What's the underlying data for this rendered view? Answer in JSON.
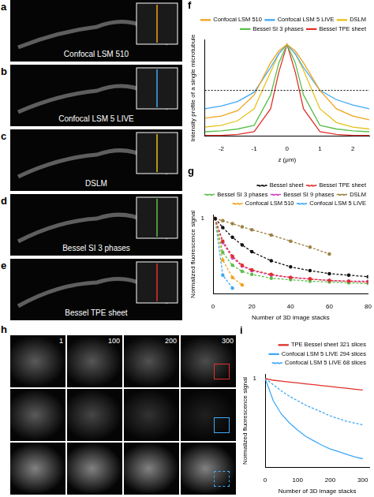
{
  "panels": [
    {
      "label": "a",
      "caption": "Confocal LSM 510"
    },
    {
      "label": "b",
      "caption": "Confocal LSM 5 LIVE"
    },
    {
      "label": "c",
      "caption": "DSLM"
    },
    {
      "label": "d",
      "caption": "Bessel SI 3 phases"
    },
    {
      "label": "e",
      "caption": "Bessel TPE sheet"
    }
  ],
  "panel_h": {
    "label": "h",
    "frame_labels": [
      "1",
      "100",
      "200",
      "300"
    ]
  },
  "chart_data": [
    {
      "type": "line",
      "label": "f",
      "x_label": "z (μm)",
      "y_label": "Intensity profile of a single microtubule",
      "x": [
        -2.5,
        -2,
        -1.5,
        -1,
        -0.5,
        -0.25,
        0,
        0.25,
        0.5,
        1,
        1.5,
        2,
        2.5
      ],
      "series": [
        {
          "name": "Confocal LSM 510",
          "color": "#f2a31b",
          "values": [
            0.2,
            0.22,
            0.28,
            0.45,
            0.8,
            0.93,
            1,
            0.93,
            0.8,
            0.5,
            0.3,
            0.22,
            0.18
          ]
        },
        {
          "name": "Confocal LSM 5 LIVE",
          "color": "#3fa9f5",
          "values": [
            0.3,
            0.33,
            0.38,
            0.48,
            0.75,
            0.9,
            1,
            0.9,
            0.75,
            0.5,
            0.4,
            0.34,
            0.3
          ]
        },
        {
          "name": "DSLM",
          "color": "#e8c21a",
          "values": [
            0.1,
            0.12,
            0.17,
            0.3,
            0.7,
            0.9,
            1,
            0.9,
            0.72,
            0.3,
            0.15,
            0.1,
            0.08
          ]
        },
        {
          "name": "Bessel SI 3 phases",
          "color": "#5cbf4a",
          "values": [
            0.05,
            0.06,
            0.08,
            0.12,
            0.45,
            0.8,
            1,
            0.8,
            0.45,
            0.12,
            0.08,
            0.06,
            0.05
          ]
        },
        {
          "name": "Bessel TPE sheet",
          "color": "#e0312b",
          "values": [
            0.01,
            0.01,
            0.02,
            0.05,
            0.3,
            0.7,
            1,
            0.7,
            0.3,
            0.05,
            0.02,
            0.01,
            0.01
          ]
        }
      ],
      "hline": 0.5,
      "xlim": [
        -2.5,
        2.5
      ],
      "xticks": [
        -2,
        -1,
        0,
        1,
        2
      ],
      "ylim": [
        0,
        1.05
      ],
      "yticks": [],
      "tick_labels": "x",
      "grid": false,
      "legend": "top right"
    },
    {
      "type": "line",
      "label": "g",
      "x_label": "Number of 3D image stacks",
      "y_label": "Normalized fluorescence signal",
      "x": [
        1,
        5,
        10,
        15,
        20,
        30,
        40,
        50,
        60,
        70,
        80
      ],
      "series": [
        {
          "name": "Bessel sheet",
          "color": "#111111",
          "marker": "circle",
          "line_style": "dashed",
          "values": [
            1,
            0.88,
            0.75,
            0.65,
            0.56,
            0.44,
            0.36,
            0.31,
            0.27,
            0.25,
            0.23
          ]
        },
        {
          "name": "Bessel TPE sheet",
          "color": "#e0312b",
          "marker": "circle",
          "line_style": "dashed",
          "values": [
            1,
            0.7,
            0.5,
            0.38,
            0.32,
            0.26,
            0.22,
            0.2,
            0.18,
            0.17,
            0.16
          ]
        },
        {
          "name": "Bessel SI 3 phases",
          "color": "#5cbf4a",
          "marker": "circle",
          "line_style": "dashed",
          "values": [
            1,
            0.55,
            0.38,
            0.3,
            0.26,
            0.21,
            0.19,
            0.17,
            0.16,
            0.15,
            0.14
          ]
        },
        {
          "name": "Bessel SI 9 phases",
          "color": "#d13fc4",
          "marker": "circle",
          "line_style": "dashed",
          "values": [
            1,
            0.68,
            0.48,
            0.37,
            0.31,
            0.25,
            0.22,
            0.2,
            0.18,
            0.17,
            0.17
          ]
        },
        {
          "name": "DSLM",
          "color": "#9c8140",
          "marker": "circle",
          "line_style": "dashed",
          "values": [
            1,
            0.97,
            0.93,
            0.89,
            0.85,
            0.78,
            0.7,
            0.62,
            0.53,
            null,
            null
          ]
        },
        {
          "name": "Confocal LSM 510",
          "color": "#f2a31b",
          "marker": "circle",
          "line_style": "dashed",
          "values": [
            1,
            0.45,
            0.22,
            0.12,
            null,
            null,
            null,
            null,
            null,
            null,
            null
          ]
        },
        {
          "name": "Confocal LSM 5 LIVE",
          "color": "#3fa9f5",
          "marker": "circle",
          "line_style": "dashed",
          "values": [
            1,
            0.25,
            0.08,
            null,
            null,
            null,
            null,
            null,
            null,
            null,
            null
          ]
        }
      ],
      "xlim": [
        0,
        80
      ],
      "xticks": [
        0,
        20,
        40,
        60,
        80
      ],
      "ylim": [
        0,
        1.05
      ],
      "yticks": [
        1
      ],
      "grid": false,
      "legend": "top right"
    },
    {
      "type": "line",
      "label": "i",
      "x_label": "Number of 3D image stacks",
      "y_label": "Normalized fluorescence signal",
      "x": [
        0,
        25,
        50,
        75,
        100,
        125,
        150,
        175,
        200,
        225,
        250,
        275,
        300
      ],
      "series": [
        {
          "name": "TPE Bessel sheet 321 slices",
          "color": "#e0312b",
          "line_style": "solid",
          "values": [
            1,
            0.98,
            0.97,
            0.96,
            0.95,
            0.94,
            0.93,
            0.92,
            0.91,
            0.9,
            0.89,
            0.88,
            0.87
          ]
        },
        {
          "name": "Confocal LSM 5 LIVE 294 slices",
          "color": "#3fa9f5",
          "line_style": "solid",
          "values": [
            1,
            0.75,
            0.6,
            0.5,
            0.42,
            0.35,
            0.3,
            0.25,
            0.21,
            0.18,
            0.15,
            0.12,
            0.1
          ]
        },
        {
          "name": "Confocal LSM 5 LIVE 68 slices",
          "color": "#3fa9f5",
          "line_style": "dashed",
          "values": [
            1,
            0.93,
            0.86,
            0.8,
            0.75,
            0.7,
            0.66,
            0.62,
            0.58,
            0.55,
            0.52,
            0.5,
            0.48
          ]
        }
      ],
      "xlim": [
        0,
        320
      ],
      "xticks": [
        0,
        100,
        200,
        300
      ],
      "ylim": [
        0,
        1.05
      ],
      "yticks": [
        1
      ],
      "grid": false,
      "legend": "top right"
    }
  ]
}
